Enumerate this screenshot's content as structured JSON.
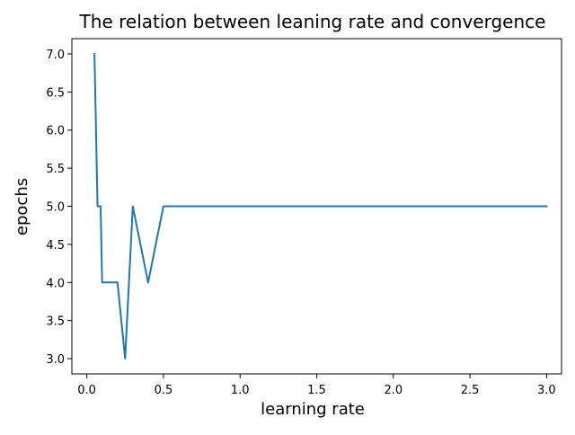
{
  "chart_data": {
    "type": "line",
    "title": "The relation between leaning rate and convergence",
    "xlabel": "learning rate",
    "ylabel": "epochs",
    "xlim": [
      -0.0975,
      3.0975
    ],
    "ylim": [
      2.8,
      7.2
    ],
    "xticks": [
      0.0,
      0.5,
      1.0,
      1.5,
      2.0,
      2.5,
      3.0
    ],
    "xtick_labels": [
      "0.0",
      "0.5",
      "1.0",
      "1.5",
      "2.0",
      "2.5",
      "3.0"
    ],
    "yticks": [
      3.0,
      3.5,
      4.0,
      4.5,
      5.0,
      5.5,
      6.0,
      6.5,
      7.0
    ],
    "ytick_labels": [
      "3.0",
      "3.5",
      "4.0",
      "4.5",
      "5.0",
      "5.5",
      "6.0",
      "6.5",
      "7.0"
    ],
    "grid": false,
    "series": [
      {
        "color": "#1f77b4",
        "x": [
          0.05,
          0.07,
          0.08,
          0.09,
          0.1,
          0.15,
          0.2,
          0.25,
          0.3,
          0.4,
          0.5,
          1.0,
          1.5,
          2.0,
          2.5,
          3.0
        ],
        "y": [
          7,
          5,
          5,
          5,
          4,
          4,
          4,
          3,
          5,
          4,
          5,
          5,
          5,
          5,
          5,
          5
        ]
      }
    ]
  }
}
